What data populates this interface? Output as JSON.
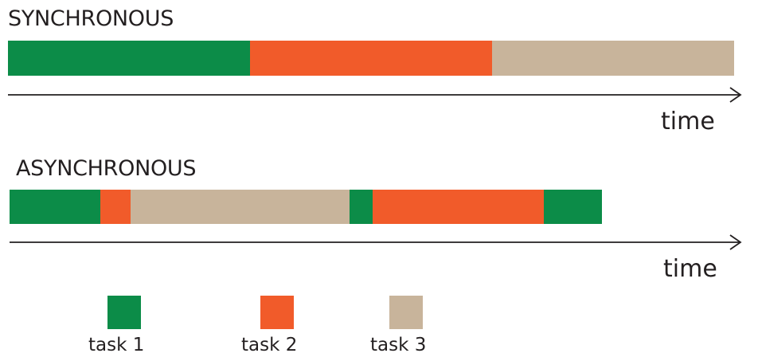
{
  "sync": {
    "title": "SYNCHRONOUS",
    "time_label": "time",
    "segments": [
      {
        "task": "task 1",
        "start": 0.0,
        "end": 0.3333
      },
      {
        "task": "task 2",
        "start": 0.3333,
        "end": 0.6667
      },
      {
        "task": "task 3",
        "start": 0.6667,
        "end": 1.0
      }
    ]
  },
  "async": {
    "title": "ASYNCHRONOUS",
    "time_label": "time",
    "segments": [
      {
        "task": "task 1",
        "start": 0.0,
        "end": 0.1377
      },
      {
        "task": "task 2",
        "start": 0.1377,
        "end": 0.1844
      },
      {
        "task": "task 3",
        "start": 0.1844,
        "end": 0.5176
      },
      {
        "task": "task 1",
        "start": 0.5176,
        "end": 0.553
      },
      {
        "task": "task 2",
        "start": 0.553,
        "end": 0.8139
      },
      {
        "task": "task 1",
        "start": 0.8139,
        "end": 0.9013
      }
    ]
  },
  "legend": {
    "items": [
      {
        "label": "task 1",
        "color": "#0c8c48"
      },
      {
        "label": "task 2",
        "color": "#f15b2a"
      },
      {
        "label": "task 3",
        "color": "#c8b49b"
      }
    ]
  },
  "colors": {
    "text": "#231f20",
    "axis": "#231f20"
  }
}
